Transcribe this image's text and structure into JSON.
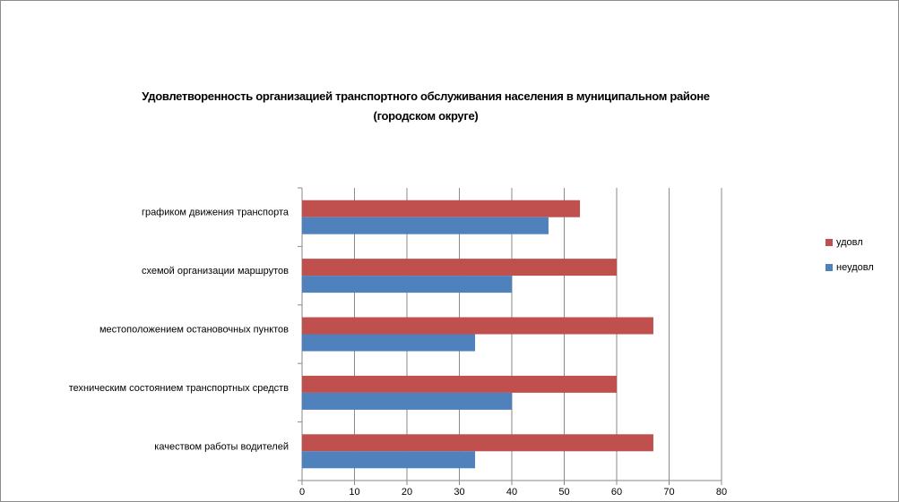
{
  "chart_data": {
    "type": "bar",
    "orientation": "horizontal",
    "title": "Удовлетворенность организацией транспортного обслуживания населения в муниципальном районе",
    "subtitle": "(городском округе)",
    "categories": [
      "графиком движения транспорта",
      "схемой организации маршрутов",
      "местоположением остановочных пунктов",
      "техническим состоянием транспортных средств",
      "качеством работы водителей"
    ],
    "series": [
      {
        "name": "удовл",
        "color": "#c0504d",
        "values": [
          53,
          60,
          67,
          60,
          67
        ]
      },
      {
        "name": "неудовл",
        "color": "#4f81bd",
        "values": [
          47,
          40,
          33,
          40,
          33
        ]
      }
    ],
    "xlim": [
      0,
      80
    ],
    "xticks": [
      0,
      10,
      20,
      30,
      40,
      50,
      60,
      70,
      80
    ],
    "grid": "vertical",
    "legend_position": "right"
  }
}
